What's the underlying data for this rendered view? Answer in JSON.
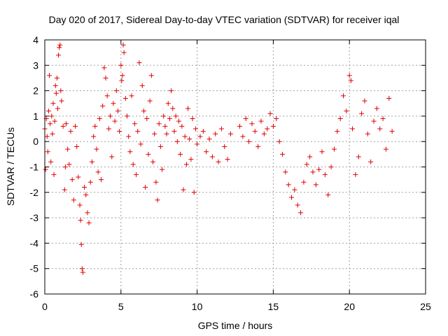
{
  "chart_data": {
    "type": "scatter",
    "title": "Day 020 of 2017, Sidereal Day-to-day VTEC variation (SDTVAR) for receiver iqal",
    "xlabel": "GPS time / hours",
    "ylabel": "SDTVAR / TECUs",
    "xlim": [
      0,
      25
    ],
    "ylim": [
      -6,
      4
    ],
    "xticks": [
      "0",
      "5",
      "10",
      "15",
      "20",
      "25"
    ],
    "yticks": [
      "4",
      "3",
      "2",
      "1",
      "0",
      "-1",
      "-2",
      "-3",
      "-4",
      "-5",
      "-6"
    ],
    "grid": true,
    "marker": "+",
    "colors": {
      "series": "#e00000",
      "grid": "#a0a0a0"
    },
    "series": [
      {
        "name": "SDTVAR",
        "points": [
          [
            0.0,
            0.5
          ],
          [
            0.05,
            -1.1
          ],
          [
            0.1,
            0.9
          ],
          [
            0.15,
            0.2
          ],
          [
            0.2,
            -0.4
          ],
          [
            0.25,
            1.2
          ],
          [
            0.3,
            2.6
          ],
          [
            0.35,
            0.7
          ],
          [
            0.4,
            -0.8
          ],
          [
            0.45,
            1.0
          ],
          [
            0.5,
            0.3
          ],
          [
            0.55,
            1.5
          ],
          [
            0.6,
            -1.3
          ],
          [
            0.65,
            0.8
          ],
          [
            0.7,
            2.2
          ],
          [
            0.75,
            1.9
          ],
          [
            0.8,
            2.5
          ],
          [
            0.85,
            1.3
          ],
          [
            0.9,
            3.4
          ],
          [
            0.95,
            3.7
          ],
          [
            1.0,
            3.8
          ],
          [
            1.05,
            2.0
          ],
          [
            1.1,
            1.6
          ],
          [
            1.2,
            0.6
          ],
          [
            1.3,
            -1.9
          ],
          [
            1.35,
            -1.0
          ],
          [
            1.4,
            0.7
          ],
          [
            1.5,
            -0.3
          ],
          [
            1.6,
            -0.9
          ],
          [
            1.7,
            0.4
          ],
          [
            1.8,
            -1.5
          ],
          [
            1.9,
            -2.3
          ],
          [
            2.0,
            0.6
          ],
          [
            2.1,
            -0.2
          ],
          [
            2.2,
            -1.4
          ],
          [
            2.3,
            -2.5
          ],
          [
            2.35,
            -3.1
          ],
          [
            2.4,
            -4.05
          ],
          [
            2.45,
            -5.0
          ],
          [
            2.5,
            -5.15
          ],
          [
            2.6,
            -1.8
          ],
          [
            2.7,
            -2.1
          ],
          [
            2.8,
            -2.8
          ],
          [
            2.9,
            -3.2
          ],
          [
            3.0,
            -1.6
          ],
          [
            3.1,
            -0.8
          ],
          [
            3.2,
            0.2
          ],
          [
            3.3,
            0.6
          ],
          [
            3.4,
            -0.3
          ],
          [
            3.5,
            -1.2
          ],
          [
            3.6,
            0.9
          ],
          [
            3.7,
            -1.5
          ],
          [
            3.8,
            1.4
          ],
          [
            3.9,
            2.9
          ],
          [
            4.0,
            2.5
          ],
          [
            4.1,
            1.8
          ],
          [
            4.2,
            0.5
          ],
          [
            4.3,
            1.0
          ],
          [
            4.4,
            -0.6
          ],
          [
            4.5,
            1.5
          ],
          [
            4.6,
            0.8
          ],
          [
            4.7,
            2.0
          ],
          [
            4.8,
            1.2
          ],
          [
            4.9,
            0.4
          ],
          [
            5.0,
            3.0
          ],
          [
            5.05,
            2.4
          ],
          [
            5.1,
            2.6
          ],
          [
            5.15,
            3.8
          ],
          [
            5.2,
            3.5
          ],
          [
            5.3,
            1.7
          ],
          [
            5.4,
            1.0
          ],
          [
            5.5,
            0.2
          ],
          [
            5.6,
            -0.4
          ],
          [
            5.7,
            1.8
          ],
          [
            5.8,
            -0.9
          ],
          [
            5.9,
            0.7
          ],
          [
            6.0,
            -1.3
          ],
          [
            6.1,
            0.4
          ],
          [
            6.2,
            3.1
          ],
          [
            6.3,
            -0.1
          ],
          [
            6.4,
            2.2
          ],
          [
            6.5,
            1.2
          ],
          [
            6.6,
            -1.8
          ],
          [
            6.7,
            0.9
          ],
          [
            6.8,
            -0.5
          ],
          [
            6.9,
            1.6
          ],
          [
            7.0,
            2.6
          ],
          [
            7.1,
            -0.8
          ],
          [
            7.2,
            0.3
          ],
          [
            7.3,
            -1.6
          ],
          [
            7.4,
            -2.3
          ],
          [
            7.5,
            0.7
          ],
          [
            7.6,
            -0.2
          ],
          [
            7.7,
            -1.1
          ],
          [
            7.8,
            1.0
          ],
          [
            7.9,
            0.6
          ],
          [
            8.0,
            0.3
          ],
          [
            8.1,
            1.5
          ],
          [
            8.2,
            0.9
          ],
          [
            8.3,
            2.0
          ],
          [
            8.4,
            1.3
          ],
          [
            8.5,
            0.4
          ],
          [
            8.6,
            1.0
          ],
          [
            8.7,
            0.0
          ],
          [
            8.8,
            0.8
          ],
          [
            8.9,
            -0.5
          ],
          [
            9.0,
            0.6
          ],
          [
            9.1,
            -1.9
          ],
          [
            9.2,
            0.2
          ],
          [
            9.3,
            -0.9
          ],
          [
            9.4,
            1.3
          ],
          [
            9.5,
            0.1
          ],
          [
            9.6,
            -0.7
          ],
          [
            9.7,
            0.9
          ],
          [
            9.8,
            -2.0
          ],
          [
            9.9,
            0.5
          ],
          [
            10.0,
            -0.1
          ],
          [
            10.2,
            0.2
          ],
          [
            10.4,
            0.4
          ],
          [
            10.6,
            -0.4
          ],
          [
            10.8,
            0.1
          ],
          [
            11.0,
            -0.6
          ],
          [
            11.2,
            0.3
          ],
          [
            11.4,
            -0.8
          ],
          [
            11.6,
            0.5
          ],
          [
            11.8,
            -0.2
          ],
          [
            12.0,
            -0.7
          ],
          [
            12.2,
            0.3
          ],
          [
            12.8,
            0.6
          ],
          [
            13.0,
            0.2
          ],
          [
            13.2,
            0.9
          ],
          [
            13.4,
            0.0
          ],
          [
            13.6,
            0.7
          ],
          [
            13.8,
            0.4
          ],
          [
            14.0,
            -0.2
          ],
          [
            14.2,
            0.8
          ],
          [
            14.4,
            0.3
          ],
          [
            14.6,
            0.5
          ],
          [
            14.8,
            1.1
          ],
          [
            15.0,
            0.6
          ],
          [
            15.2,
            0.9
          ],
          [
            15.4,
            0.0
          ],
          [
            15.6,
            -0.5
          ],
          [
            15.8,
            -1.2
          ],
          [
            16.0,
            -1.7
          ],
          [
            16.2,
            -2.2
          ],
          [
            16.4,
            -1.9
          ],
          [
            16.6,
            -2.5
          ],
          [
            16.8,
            -2.8
          ],
          [
            17.0,
            -1.6
          ],
          [
            17.2,
            -0.9
          ],
          [
            17.4,
            -0.6
          ],
          [
            17.6,
            -1.2
          ],
          [
            17.8,
            -1.7
          ],
          [
            18.0,
            -1.1
          ],
          [
            18.2,
            -0.4
          ],
          [
            18.4,
            -1.3
          ],
          [
            18.6,
            -2.1
          ],
          [
            18.8,
            -1.0
          ],
          [
            19.0,
            -0.3
          ],
          [
            19.2,
            0.4
          ],
          [
            19.4,
            0.9
          ],
          [
            19.6,
            1.8
          ],
          [
            19.8,
            1.2
          ],
          [
            20.0,
            2.6
          ],
          [
            20.1,
            2.4
          ],
          [
            20.2,
            0.5
          ],
          [
            20.4,
            -1.3
          ],
          [
            20.6,
            -0.6
          ],
          [
            20.8,
            1.1
          ],
          [
            21.0,
            1.6
          ],
          [
            21.2,
            0.3
          ],
          [
            21.4,
            -0.8
          ],
          [
            21.6,
            0.8
          ],
          [
            21.8,
            1.3
          ],
          [
            22.0,
            0.5
          ],
          [
            22.2,
            0.9
          ],
          [
            22.4,
            -0.3
          ],
          [
            22.6,
            1.7
          ],
          [
            22.8,
            0.4
          ]
        ]
      }
    ]
  }
}
